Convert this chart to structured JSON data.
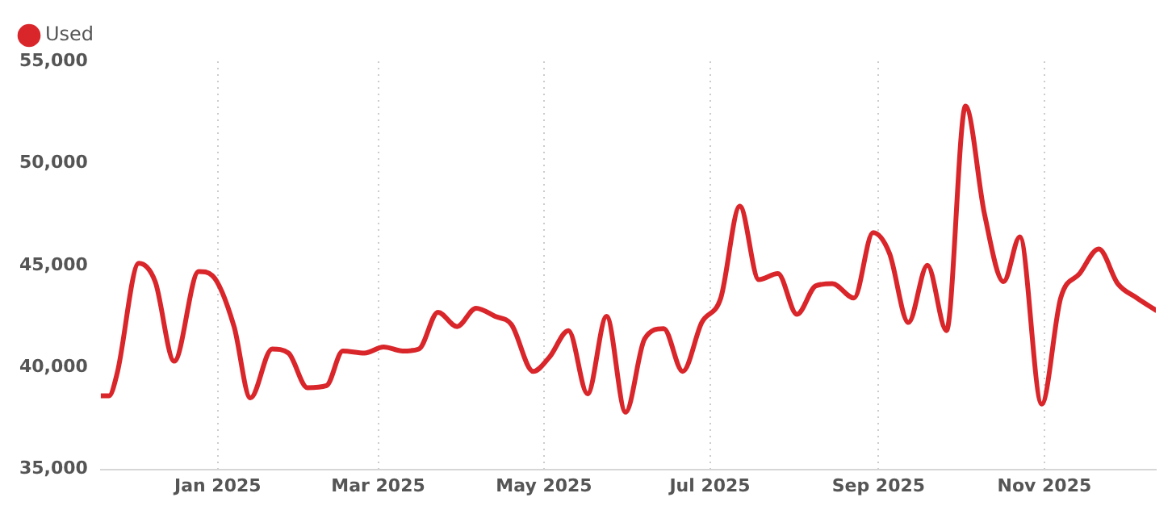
{
  "chart_data": {
    "type": "line",
    "legend": "top left",
    "grid": "x",
    "marker": "none",
    "line_style": "solid",
    "xticks": [
      {
        "value": "2025-01",
        "label": "Jan 2025"
      },
      {
        "value": "2025-03",
        "label": "Mar 2025"
      },
      {
        "value": "2025-05",
        "label": "May 2025"
      },
      {
        "value": "2025-07",
        "label": "Jul 2025"
      },
      {
        "value": "2025-09",
        "label": "Sep 2025"
      },
      {
        "value": "2025-11",
        "label": "Nov 2025"
      }
    ],
    "xlim": [
      "2024-11-19",
      "2025-12-12"
    ],
    "ylim": [
      35000,
      55000
    ],
    "yticks": [
      {
        "value": 35000,
        "label": "35,000"
      },
      {
        "value": 40000,
        "label": "40,000"
      },
      {
        "value": 45000,
        "label": "45,000"
      },
      {
        "value": 50000,
        "label": "50,000"
      },
      {
        "value": 55000,
        "label": "55,000"
      }
    ],
    "x": [
      "2024-11-19",
      "2024-11-22",
      "2024-11-25",
      "2024-12-03",
      "2024-12-09",
      "2024-12-16",
      "2024-12-25",
      "2024-12-30",
      "2025-01-07",
      "2025-01-13",
      "2025-01-21",
      "2025-01-27",
      "2025-02-03",
      "2025-02-10",
      "2025-02-16",
      "2025-02-24",
      "2025-03-03",
      "2025-03-10",
      "2025-03-16",
      "2025-03-23",
      "2025-03-30",
      "2025-04-06",
      "2025-04-13",
      "2025-04-19",
      "2025-04-27",
      "2025-05-03",
      "2025-05-10",
      "2025-05-17",
      "2025-05-24",
      "2025-05-31",
      "2025-06-07",
      "2025-06-14",
      "2025-06-21",
      "2025-06-28",
      "2025-07-05",
      "2025-07-12",
      "2025-07-19",
      "2025-07-26",
      "2025-08-02",
      "2025-08-09",
      "2025-08-15",
      "2025-08-23",
      "2025-08-30",
      "2025-09-05",
      "2025-09-12",
      "2025-09-19",
      "2025-09-26",
      "2025-10-03",
      "2025-10-10",
      "2025-10-17",
      "2025-10-23",
      "2025-10-31",
      "2025-11-07",
      "2025-11-14",
      "2025-11-21",
      "2025-11-28",
      "2025-12-05",
      "2025-12-12"
    ],
    "series": [
      {
        "name": "Used",
        "color": "#d9262b",
        "values": [
          38600,
          38600,
          39700,
          45100,
          44200,
          40300,
          44700,
          44500,
          42000,
          38500,
          40900,
          40700,
          39000,
          39100,
          40800,
          40700,
          41000,
          40800,
          40900,
          42700,
          42000,
          42900,
          42500,
          42100,
          39800,
          40500,
          41800,
          38700,
          42500,
          37800,
          41400,
          41900,
          39800,
          42200,
          43400,
          47900,
          44300,
          44600,
          42600,
          44000,
          44100,
          43400,
          46600,
          45600,
          42200,
          45000,
          41800,
          52800,
          47500,
          44200,
          46400,
          38200,
          43400,
          44600,
          45800,
          44100,
          43400,
          42800
        ]
      }
    ]
  }
}
